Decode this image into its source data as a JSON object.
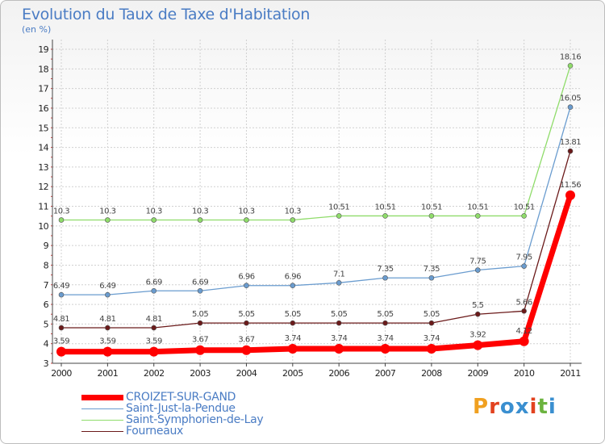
{
  "header": {
    "title": "Evolution du Taux de Taxe d'Habitation",
    "subtitle": "(en %)"
  },
  "brand": {
    "text": "Proxiti",
    "colors": [
      "#f0a020",
      "#e2421f",
      "#3a8fd0",
      "#3a8fd0",
      "#e2421f",
      "#6cb33f",
      "#3a8fd0"
    ]
  },
  "chart_data": {
    "type": "line",
    "title": "Evolution du Taux de Taxe d'Habitation",
    "subtitle": "(en %)",
    "x": [
      "2000",
      "2001",
      "2002",
      "2003",
      "2004",
      "2005",
      "2006",
      "2007",
      "2008",
      "2009",
      "2010",
      "2011"
    ],
    "ylim": [
      3,
      19
    ],
    "yticks": [
      3,
      4,
      5,
      6,
      7,
      8,
      9,
      10,
      11,
      12,
      13,
      14,
      15,
      16,
      17,
      18,
      19
    ],
    "grid": true,
    "legend_position": "bottom-left",
    "series": [
      {
        "name": "CROIZET-SUR-GAND",
        "color": "#ff0000",
        "values": [
          3.59,
          3.59,
          3.59,
          3.67,
          3.67,
          3.74,
          3.74,
          3.74,
          3.74,
          3.92,
          4.12,
          11.56
        ],
        "labels": [
          "3.59",
          "3.59",
          "3.59",
          "3.67",
          "3.67",
          "3.74",
          "3.74",
          "3.74",
          "3.74",
          "3.92",
          "4.12",
          "11.56"
        ]
      },
      {
        "name": "Saint-Just-la-Pendue",
        "color": "#6a9ccf",
        "values": [
          6.49,
          6.49,
          6.69,
          6.69,
          6.96,
          6.96,
          7.1,
          7.35,
          7.35,
          7.75,
          7.95,
          16.05
        ],
        "labels": [
          "6.49",
          "6.49",
          "6.69",
          "6.69",
          "6.96",
          "6.96",
          "7.1",
          "7.35",
          "7.35",
          "7.75",
          "7.95",
          "16.05"
        ]
      },
      {
        "name": "Saint-Symphorien-de-Lay",
        "color": "#8fdc6a",
        "values": [
          10.3,
          10.3,
          10.3,
          10.3,
          10.3,
          10.3,
          10.51,
          10.51,
          10.51,
          10.51,
          10.51,
          18.16
        ],
        "labels": [
          "10.3",
          "10.3",
          "10.3",
          "10.3",
          "10.3",
          "10.3",
          "10.51",
          "10.51",
          "10.51",
          "10.51",
          "10.51",
          "18.16"
        ]
      },
      {
        "name": "Fourneaux",
        "color": "#6b1a1a",
        "values": [
          4.81,
          4.81,
          4.81,
          5.05,
          5.05,
          5.05,
          5.05,
          5.05,
          5.05,
          5.5,
          5.66,
          13.81
        ],
        "labels": [
          "4.81",
          "4.81",
          "4.81",
          "5.05",
          "5.05",
          "5.05",
          "5.05",
          "5.05",
          "5.05",
          "5.5",
          "5.66",
          "13.81"
        ]
      }
    ]
  }
}
